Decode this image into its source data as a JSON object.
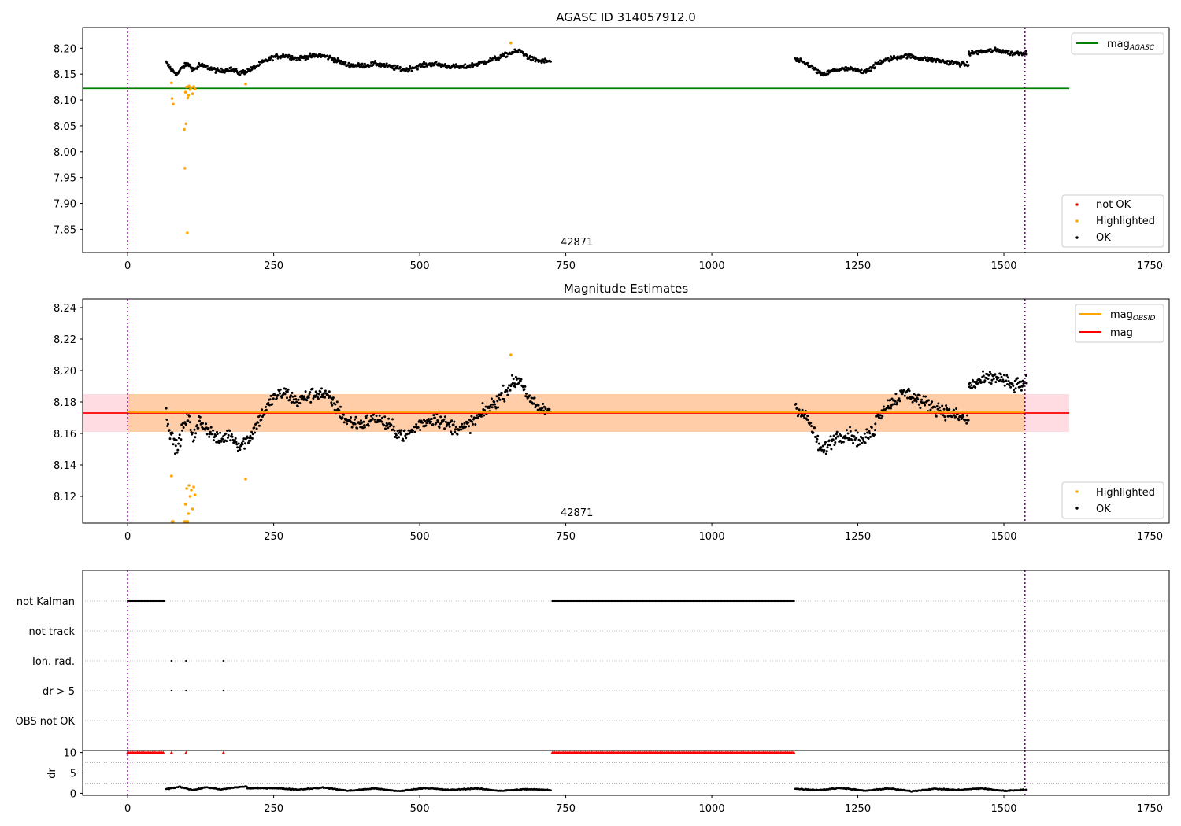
{
  "chart_data": [
    {
      "type": "scatter",
      "title": "AGASC ID 314057912.0",
      "xlabel": "",
      "ylabel": "",
      "xlim": [
        -77,
        1783
      ],
      "ylim": [
        7.805,
        8.24
      ],
      "xticks": [
        0,
        250,
        500,
        750,
        1000,
        1250,
        1500,
        1750
      ],
      "xtick_labels": [
        "0",
        "250",
        "500",
        "750",
        "1000",
        "1250",
        "1500",
        "1750"
      ],
      "yticks": [
        7.85,
        7.9,
        7.95,
        8.0,
        8.05,
        8.1,
        8.15,
        8.2
      ],
      "ytick_labels": [
        "7.85",
        "7.90",
        "7.95",
        "8.00",
        "8.05",
        "8.10",
        "8.15",
        "8.20"
      ],
      "obsid_label": "42871",
      "obsid_label_x": 769,
      "vlines_x": [
        0,
        1536
      ],
      "hline": {
        "name": "mag_AGASC",
        "label_main": "mag",
        "label_sub": "AGASC",
        "y": 8.1225,
        "x": [
          -77,
          1612
        ],
        "color": "#008000"
      },
      "point_legend": [
        {
          "label": "not OK",
          "color": "#ff0000"
        },
        {
          "label": "Highlighted",
          "color": "#ffa500"
        },
        {
          "label": "OK",
          "color": "#000000"
        }
      ],
      "segments": [
        {
          "x": [
            66,
            122
          ],
          "ylevels": [
            8.172,
            8.158,
            8.15,
            8.163,
            8.17,
            8.158,
            8.165
          ],
          "color": "#000000"
        },
        {
          "x": [
            122,
            210
          ],
          "ylevels": [
            8.168,
            8.162,
            8.155,
            8.16,
            8.152,
            8.158
          ],
          "color": "#000000"
        },
        {
          "x": [
            210,
            350
          ],
          "ylevels": [
            8.158,
            8.172,
            8.183,
            8.186,
            8.18,
            8.184,
            8.186,
            8.181
          ],
          "color": "#000000"
        },
        {
          "x": [
            350,
            600
          ],
          "ylevels": [
            8.18,
            8.168,
            8.166,
            8.17,
            8.164,
            8.158,
            8.166,
            8.17,
            8.165,
            8.163,
            8.17
          ],
          "color": "#000000"
        },
        {
          "x": [
            600,
            725
          ],
          "ylevels": [
            8.17,
            8.176,
            8.182,
            8.19,
            8.195,
            8.18,
            8.175,
            8.175
          ],
          "color": "#000000"
        },
        {
          "x": [
            1143,
            1280
          ],
          "ylevels": [
            8.178,
            8.168,
            8.148,
            8.158,
            8.16,
            8.155,
            8.163
          ],
          "color": "#000000"
        },
        {
          "x": [
            1280,
            1440
          ],
          "ylevels": [
            8.17,
            8.18,
            8.186,
            8.18,
            8.176,
            8.172,
            8.168
          ],
          "color": "#000000"
        },
        {
          "x": [
            1440,
            1540
          ],
          "ylevels": [
            8.19,
            8.194,
            8.196,
            8.19,
            8.192
          ],
          "color": "#000000"
        }
      ],
      "highlighted": {
        "x": [
          75,
          76,
          78,
          97,
          98,
          99,
          100,
          101,
          102,
          103,
          104,
          105,
          107,
          109,
          111,
          113,
          115,
          202,
          656
        ],
        "y": [
          8.133,
          8.103,
          8.092,
          8.043,
          7.968,
          8.115,
          8.054,
          8.125,
          7.843,
          8.104,
          8.109,
          8.127,
          8.12,
          8.124,
          8.112,
          8.126,
          8.121,
          8.131,
          8.21
        ],
        "color": "#ffa500"
      }
    },
    {
      "type": "scatter",
      "title": "Magnitude Estimates",
      "xlabel": "",
      "ylabel": "",
      "xlim": [
        -77,
        1783
      ],
      "ylim": [
        8.103,
        8.2455
      ],
      "xticks": [
        0,
        250,
        500,
        750,
        1000,
        1250,
        1500,
        1750
      ],
      "xtick_labels": [
        "0",
        "250",
        "500",
        "750",
        "1000",
        "1250",
        "1500",
        "1750"
      ],
      "yticks": [
        8.12,
        8.14,
        8.16,
        8.18,
        8.2,
        8.22,
        8.24
      ],
      "ytick_labels": [
        "8.12",
        "8.14",
        "8.16",
        "8.18",
        "8.20",
        "8.22",
        "8.24"
      ],
      "obsid_label": "42871",
      "obsid_label_x": 769,
      "vlines_x": [
        0,
        1536
      ],
      "mag_line": {
        "name": "mag",
        "y": 8.173,
        "x": [
          -77,
          1612
        ],
        "color": "#ff0000"
      },
      "mag_band": {
        "y": [
          8.161,
          8.185
        ],
        "x": [
          -77,
          1612
        ],
        "color": "#ffc0cb"
      },
      "obsid_line": {
        "label_main": "mag",
        "label_sub": "OBSID",
        "y": 8.1735,
        "x": [
          0,
          1536
        ],
        "color": "#ffa500"
      },
      "obsid_band": {
        "y": [
          8.161,
          8.185
        ],
        "x": [
          0,
          1536
        ],
        "color": "#ffa500"
      },
      "line_legend": [
        {
          "label_main": "mag",
          "label_sub": "OBSID",
          "color": "#ffa500"
        },
        {
          "label_main": "mag",
          "label_sub": "",
          "color": "#ff0000"
        }
      ],
      "point_legend": [
        {
          "label": "Highlighted",
          "color": "#ffa500"
        },
        {
          "label": "OK",
          "color": "#000000"
        }
      ],
      "segments": [
        {
          "x": [
            66,
            122
          ],
          "ylevels": [
            8.172,
            8.158,
            8.15,
            8.163,
            8.17,
            8.158,
            8.165
          ],
          "color": "#000000"
        },
        {
          "x": [
            122,
            210
          ],
          "ylevels": [
            8.168,
            8.162,
            8.155,
            8.16,
            8.152,
            8.158
          ],
          "color": "#000000"
        },
        {
          "x": [
            210,
            350
          ],
          "ylevels": [
            8.158,
            8.172,
            8.183,
            8.186,
            8.18,
            8.184,
            8.186,
            8.181
          ],
          "color": "#000000"
        },
        {
          "x": [
            350,
            600
          ],
          "ylevels": [
            8.18,
            8.168,
            8.166,
            8.17,
            8.164,
            8.158,
            8.166,
            8.17,
            8.165,
            8.163,
            8.17
          ],
          "color": "#000000"
        },
        {
          "x": [
            600,
            725
          ],
          "ylevels": [
            8.17,
            8.176,
            8.182,
            8.19,
            8.195,
            8.18,
            8.175,
            8.175
          ],
          "color": "#000000"
        },
        {
          "x": [
            1143,
            1280
          ],
          "ylevels": [
            8.178,
            8.168,
            8.148,
            8.158,
            8.16,
            8.155,
            8.163
          ],
          "color": "#000000"
        },
        {
          "x": [
            1280,
            1440
          ],
          "ylevels": [
            8.17,
            8.18,
            8.186,
            8.18,
            8.176,
            8.172,
            8.168
          ],
          "color": "#000000"
        },
        {
          "x": [
            1440,
            1540
          ],
          "ylevels": [
            8.19,
            8.194,
            8.196,
            8.19,
            8.192
          ],
          "color": "#000000"
        }
      ],
      "highlighted": {
        "x": [
          75,
          76,
          78,
          97,
          98,
          99,
          100,
          101,
          102,
          103,
          104,
          105,
          107,
          109,
          111,
          113,
          115,
          202,
          656
        ],
        "y": [
          8.133,
          8.104,
          8.104,
          8.104,
          8.104,
          8.115,
          8.104,
          8.125,
          8.104,
          8.104,
          8.109,
          8.127,
          8.12,
          8.124,
          8.112,
          8.126,
          8.121,
          8.131,
          8.21
        ],
        "color": "#ffa500"
      }
    },
    {
      "type": "scatter",
      "title": "",
      "xlabel": "",
      "ylabel": "",
      "xlim": [
        -77,
        1783
      ],
      "vlines_x": [
        0,
        1536
      ],
      "categories": [
        "not Kalman",
        "not track",
        "Ion. rad.",
        "dr > 5",
        "OBS not OK"
      ],
      "flags": [
        {
          "category": "not Kalman",
          "ranges": [
            [
              0,
              63
            ],
            [
              727,
              1141
            ]
          ],
          "color": "#000000"
        },
        {
          "category": "not track",
          "ranges": [],
          "color": "#000000"
        },
        {
          "category": "Ion. rad.",
          "points": [
            75,
            100,
            164
          ],
          "color": "#000000"
        },
        {
          "category": "dr > 5",
          "points": [
            75,
            100,
            164
          ],
          "color": "#000000"
        },
        {
          "category": "OBS not OK",
          "ranges": [],
          "color": "#000000"
        }
      ]
    },
    {
      "type": "scatter",
      "title": "",
      "xlabel": "",
      "ylabel": "dr",
      "xlim": [
        -77,
        1783
      ],
      "ylim": [
        -0.5,
        10.5
      ],
      "xticks": [
        0,
        250,
        500,
        750,
        1000,
        1250,
        1500,
        1750
      ],
      "xtick_labels": [
        "0",
        "250",
        "500",
        "750",
        "1000",
        "1250",
        "1500",
        "1750"
      ],
      "yticks": [
        0,
        5,
        10
      ],
      "ytick_labels": [
        "0",
        "5",
        "10"
      ],
      "vlines_x": [
        0,
        1536
      ],
      "capped": {
        "value": 10,
        "ranges": [
          [
            0,
            63
          ],
          [
            727,
            1141
          ]
        ],
        "points": [
          75,
          100,
          164
        ],
        "color": "#ff0000"
      },
      "dr_segments": [
        {
          "x": [
            66,
            205
          ],
          "ylevels": [
            1.0,
            1.6,
            0.8,
            1.5,
            0.9,
            1.4,
            1.7
          ],
          "color": "#000000"
        },
        {
          "x": [
            205,
            725
          ],
          "ylevels": [
            1.2,
            1.3,
            0.9,
            1.4,
            0.6,
            1.2,
            0.5,
            1.3,
            0.8,
            1.2,
            0.6,
            1.0,
            0.8
          ],
          "color": "#000000"
        },
        {
          "x": [
            1143,
            1540
          ],
          "ylevels": [
            1.1,
            0.8,
            1.3,
            0.6,
            1.2,
            0.5,
            1.1,
            0.8,
            1.2,
            0.6,
            0.9
          ],
          "color": "#000000"
        }
      ]
    }
  ]
}
